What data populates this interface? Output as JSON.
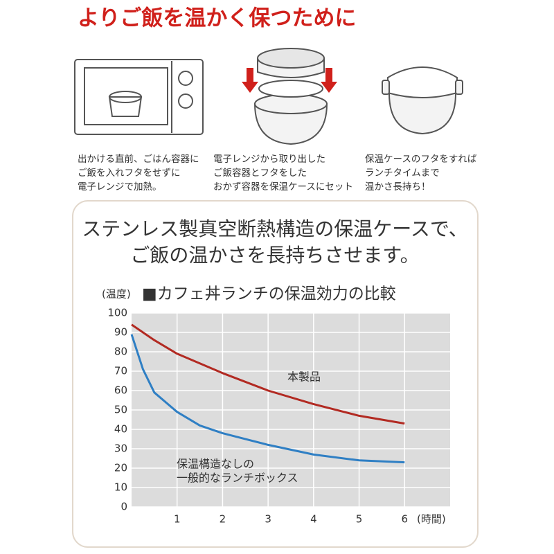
{
  "header": {
    "title": "よりご飯を温かく保つために"
  },
  "steps": [
    {
      "lines": [
        "出かける直前、ごはん容器に",
        "ご飯を入れフタをせずに",
        "電子レンジで加熱。"
      ]
    },
    {
      "lines": [
        "電子レンジから取り出した",
        "ご飯容器とフタをした",
        "おかず容器を保温ケースにセット"
      ]
    },
    {
      "lines": [
        "保温ケースのフタをすれば",
        "ランチタイムまで",
        "温かさ長持ち！"
      ]
    }
  ],
  "headline": {
    "lines": [
      "ステンレス製真空断熱構造の保温ケースで、",
      "ご飯の温かさを長持ちさせます。"
    ]
  },
  "chart_data": {
    "type": "line",
    "title": "■カフェ丼ランチの保温効力の比較",
    "y_label": "(温度)",
    "x_label": "(時間)",
    "x": [
      0,
      0.25,
      0.5,
      1,
      1.5,
      2,
      3,
      4,
      5,
      6
    ],
    "series": [
      {
        "name": "本製品",
        "color": "#b22a22",
        "values": [
          94,
          90,
          86,
          79,
          74,
          69,
          60,
          53,
          47,
          43
        ]
      },
      {
        "color": "#2f7fc4",
        "values": [
          89,
          71,
          59,
          49,
          42,
          38,
          32,
          27,
          24,
          23
        ]
      }
    ],
    "annotations": [
      "保温構造なしの",
      "一般的なランチボックス"
    ],
    "xlim": [
      0,
      7
    ],
    "xticks": [
      1,
      2,
      3,
      4,
      5,
      6
    ],
    "ylim": [
      0,
      100
    ],
    "yticks": [
      0,
      10,
      20,
      30,
      40,
      50,
      60,
      70,
      80,
      90,
      100
    ],
    "grid": true
  }
}
